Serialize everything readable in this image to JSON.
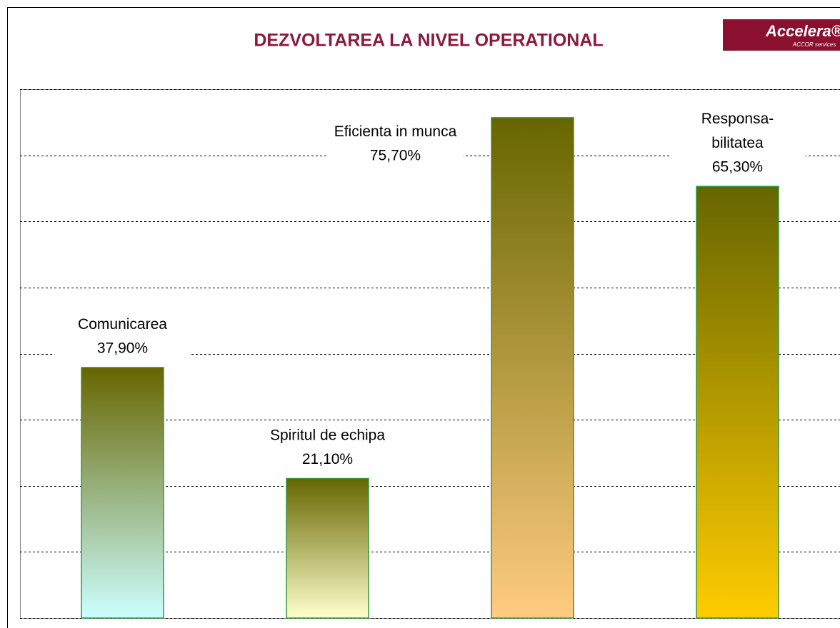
{
  "chart_data": {
    "type": "bar",
    "title": "DEZVOLTAREA LA NIVEL OPERATIONAL",
    "logo": {
      "name": "Accelera®",
      "sub": "ACCOR services"
    },
    "categories": [
      "Comunicarea",
      "Spiritul de echipa",
      "Eficienta in munca",
      "Responsa-\nbilitatea"
    ],
    "values": [
      37.9,
      21.1,
      75.7,
      65.3
    ],
    "value_labels": [
      "37,90%",
      "21,10%",
      "75,70%",
      "65,30%"
    ],
    "gradient_top": "#666600",
    "colors": [
      "#ccffff",
      "#ffffcc",
      "#ffcc80",
      "#ffcc00"
    ],
    "ylim": [
      0,
      80
    ],
    "yticks": [
      0,
      10,
      20,
      30,
      40,
      50,
      60,
      70,
      80
    ],
    "grid": true
  }
}
